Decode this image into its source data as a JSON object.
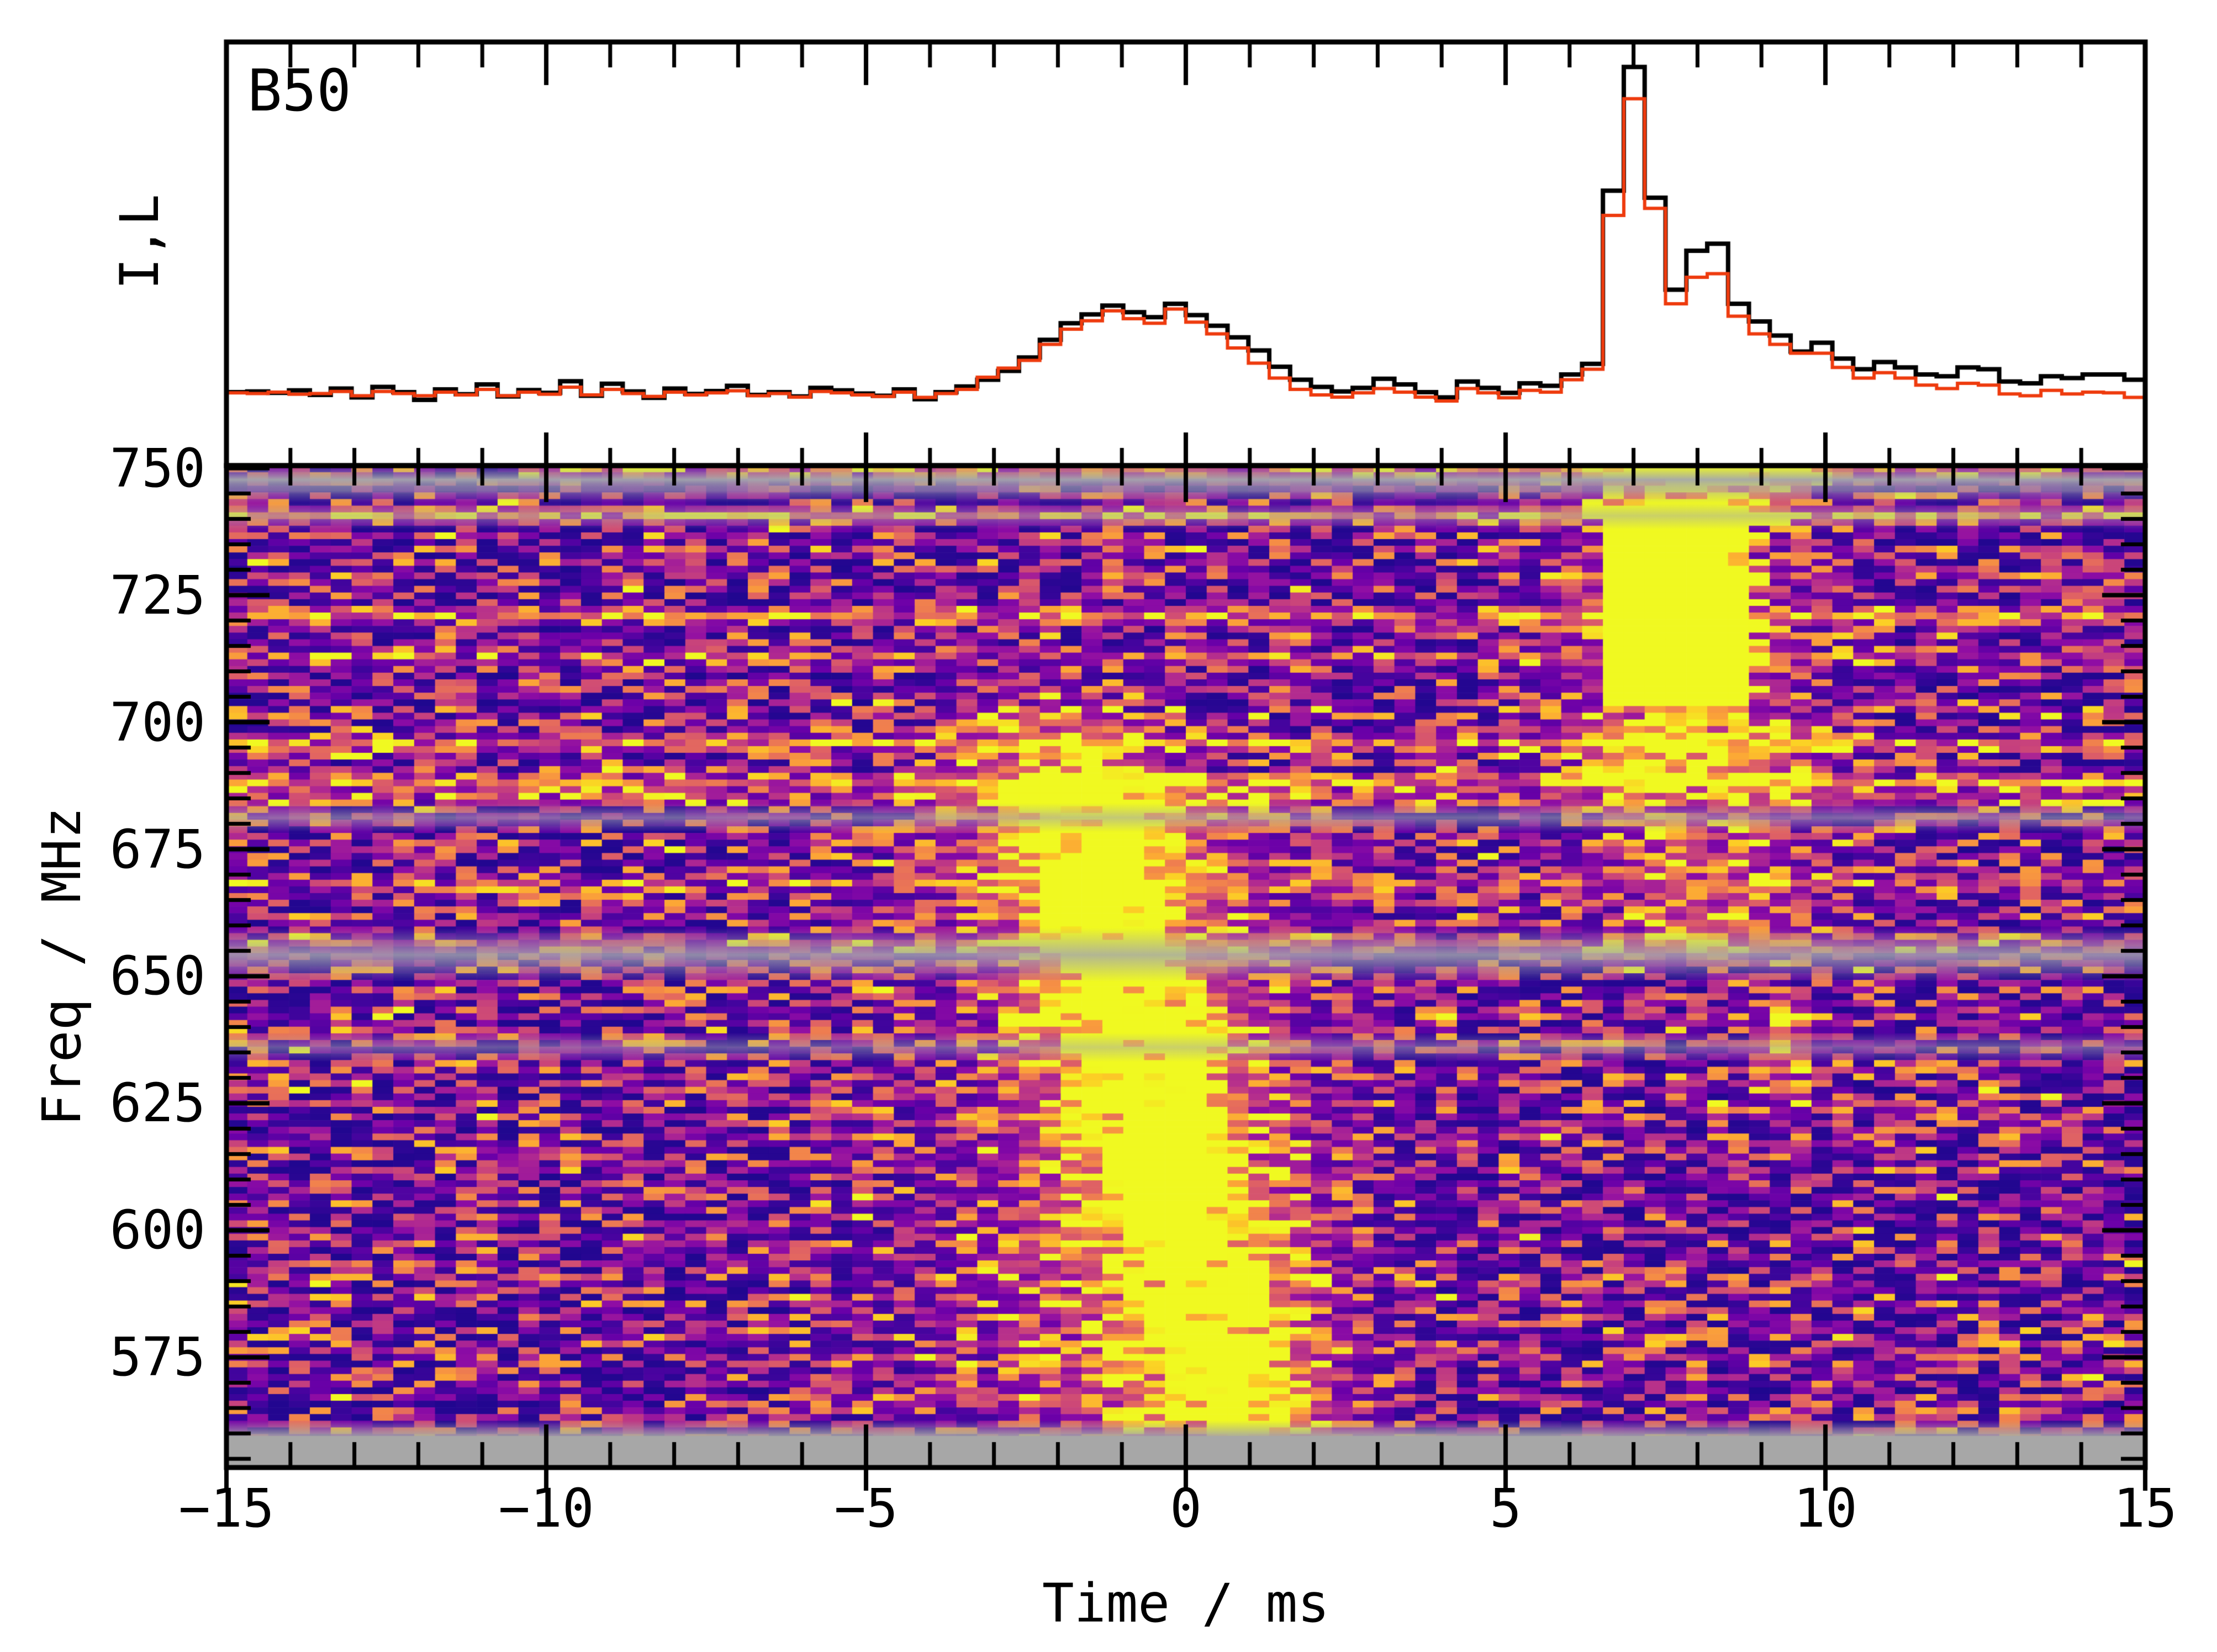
{
  "chart_data": {
    "type": "composite",
    "title": "B50",
    "panels": [
      {
        "type": "step-line",
        "name": "pulse-profile",
        "ylabel": "I,L",
        "x_start": -15,
        "x_end": 15,
        "bins": 92,
        "ylim": [
          -0.16,
          1.05
        ],
        "series": [
          {
            "name": "I",
            "color": "#000000",
            "lw": 8,
            "values": [
              0.05,
              0.052,
              0.048,
              0.055,
              0.042,
              0.06,
              0.035,
              0.065,
              0.05,
              0.028,
              0.058,
              0.044,
              0.072,
              0.038,
              0.056,
              0.048,
              0.081,
              0.04,
              0.074,
              0.052,
              0.034,
              0.06,
              0.045,
              0.053,
              0.068,
              0.042,
              0.05,
              0.038,
              0.062,
              0.055,
              0.046,
              0.04,
              0.058,
              0.03,
              0.05,
              0.066,
              0.085,
              0.11,
              0.148,
              0.198,
              0.245,
              0.27,
              0.295,
              0.276,
              0.262,
              0.3,
              0.268,
              0.238,
              0.205,
              0.168,
              0.122,
              0.085,
              0.065,
              0.052,
              0.062,
              0.088,
              0.072,
              0.05,
              0.035,
              0.08,
              0.062,
              0.048,
              0.075,
              0.068,
              0.1,
              0.13,
              0.62,
              0.97,
              0.6,
              0.34,
              0.45,
              0.47,
              0.3,
              0.25,
              0.21,
              0.165,
              0.19,
              0.145,
              0.115,
              0.135,
              0.12,
              0.1,
              0.095,
              0.12,
              0.115,
              0.08,
              0.075,
              0.095,
              0.09,
              0.1,
              0.1,
              0.085
            ]
          },
          {
            "name": "L",
            "color": "#ee3b0e",
            "lw": 6,
            "values": [
              0.048,
              0.046,
              0.05,
              0.044,
              0.046,
              0.052,
              0.04,
              0.052,
              0.046,
              0.04,
              0.05,
              0.042,
              0.058,
              0.04,
              0.05,
              0.044,
              0.064,
              0.042,
              0.058,
              0.046,
              0.038,
              0.05,
              0.042,
              0.048,
              0.054,
              0.04,
              0.046,
              0.036,
              0.052,
              0.048,
              0.042,
              0.038,
              0.05,
              0.035,
              0.046,
              0.058,
              0.092,
              0.118,
              0.14,
              0.185,
              0.228,
              0.252,
              0.28,
              0.258,
              0.245,
              0.285,
              0.248,
              0.215,
              0.175,
              0.132,
              0.09,
              0.058,
              0.042,
              0.036,
              0.048,
              0.06,
              0.05,
              0.036,
              0.025,
              0.06,
              0.048,
              0.034,
              0.055,
              0.05,
              0.085,
              0.115,
              0.55,
              0.88,
              0.57,
              0.3,
              0.375,
              0.385,
              0.265,
              0.215,
              0.185,
              0.16,
              0.16,
              0.12,
              0.09,
              0.105,
              0.09,
              0.07,
              0.06,
              0.075,
              0.07,
              0.045,
              0.04,
              0.055,
              0.045,
              0.05,
              0.048,
              0.035
            ]
          }
        ]
      },
      {
        "type": "heatmap",
        "name": "dynamic-spectrum",
        "xlabel": "Time / ms",
        "ylabel": "Freq / MHz",
        "xlim": [
          -15,
          15
        ],
        "ylim": [
          553.3,
          750.5
        ],
        "xticks": {
          "major": [
            -15,
            -10,
            -5,
            0,
            5,
            10,
            15
          ],
          "labels": [
            "−15",
            "−10",
            "−5",
            "0",
            "5",
            "10",
            "15"
          ],
          "minor_step": 1
        },
        "yticks": {
          "major": [
            750,
            725,
            700,
            675,
            650,
            625,
            600,
            575
          ],
          "labels": [
            "750",
            "725",
            "700",
            "675",
            "650",
            "625",
            "600",
            "575"
          ],
          "minor_step": 5
        },
        "grid": {
          "rows": 150,
          "cols": 92
        },
        "seed": 1371,
        "colormap": {
          "name": "plasma",
          "stops": [
            "#0d0887",
            "#41049d",
            "#6a00a8",
            "#8f0da4",
            "#b12a90",
            "#cc4778",
            "#e16462",
            "#f2844b",
            "#fca636",
            "#fcce25",
            "#f0f921"
          ]
        },
        "noise": {
          "base": 0.04,
          "span": 0.8,
          "gamma": 2.2,
          "speckle_prob": 0.022,
          "speckle_amp": 0.5,
          "row_gain_jitter": 0.13
        },
        "bright_rows": [
          {
            "f": 749.3,
            "amp": 0.5,
            "t_from": -10.3
          },
          {
            "f": 740.8,
            "amp": 0.55,
            "t_from": -15
          },
          {
            "f": 721.0,
            "amp": 0.55,
            "t_from": -15
          },
          {
            "f": 712.8,
            "amp": 0.26,
            "t_from": -15
          },
          {
            "f": 695.8,
            "amp": 0.48,
            "t_from": -15
          },
          {
            "f": 688.0,
            "amp": 0.6,
            "t_from": -15
          },
          {
            "f": 684.8,
            "amp": 0.3,
            "t_from": -15
          },
          {
            "f": 668.0,
            "amp": 0.22,
            "t_from": -15
          },
          {
            "f": 656.2,
            "amp": 0.28,
            "t_from": -15
          }
        ],
        "masked_rows": [
          {
            "f": 750.2,
            "hw": 2.4,
            "alpha": 0.95
          },
          {
            "f": 745.6,
            "hw": 1.2,
            "alpha": 0.5
          },
          {
            "f": 740.6,
            "hw": 1.2,
            "alpha": 0.5
          },
          {
            "f": 681.2,
            "hw": 1.3,
            "alpha": 0.6
          },
          {
            "f": 654.2,
            "hw": 2.4,
            "alpha": 0.82
          },
          {
            "f": 636.0,
            "hw": 1.3,
            "alpha": 0.5
          }
        ],
        "mask_color": "#a5a8ad",
        "bottom_band": {
          "f_top": 559.5,
          "color": "#a7a7a7"
        },
        "burst1": {
          "t0": -1.6,
          "f_ref": 677,
          "sweep": 0.021,
          "sigma_t": 0.95,
          "amp": 0.85,
          "f_full": [
            562,
            680
          ],
          "f_hi_taper": [
            680,
            700,
            714
          ],
          "skirt": {
            "t0": -0.9,
            "sigma": 1.9,
            "amp": 0.3,
            "f_range": [
              558,
              692
            ]
          },
          "sat_band": [
            572,
            668
          ],
          "sat_prob": 0.55
        },
        "burst2": {
          "core_t": [
            6.55,
            8.6
          ],
          "core_f": [
            703,
            742.5
          ],
          "edge_soft": 0.22,
          "ragged": 0.55,
          "skirt_hi": {
            "t0": 7.7,
            "sigma": 1.05,
            "amp": 0.52,
            "f_range": [
              688,
              750.5
            ]
          },
          "skirt_lo": {
            "t0": 8.1,
            "sigma": 1.1,
            "amp": 0.34,
            "f_range": [
              652,
              700
            ]
          },
          "top_band": {
            "t_range": [
              6.4,
              9.4
            ],
            "amp": 0.4,
            "f_range": [
              742,
              750.5
            ]
          }
        },
        "blob": {
          "t": 9.35,
          "f": 634,
          "amp": 0.55,
          "sigma_t": 0.3,
          "sigma_f": 7
        }
      }
    ]
  }
}
